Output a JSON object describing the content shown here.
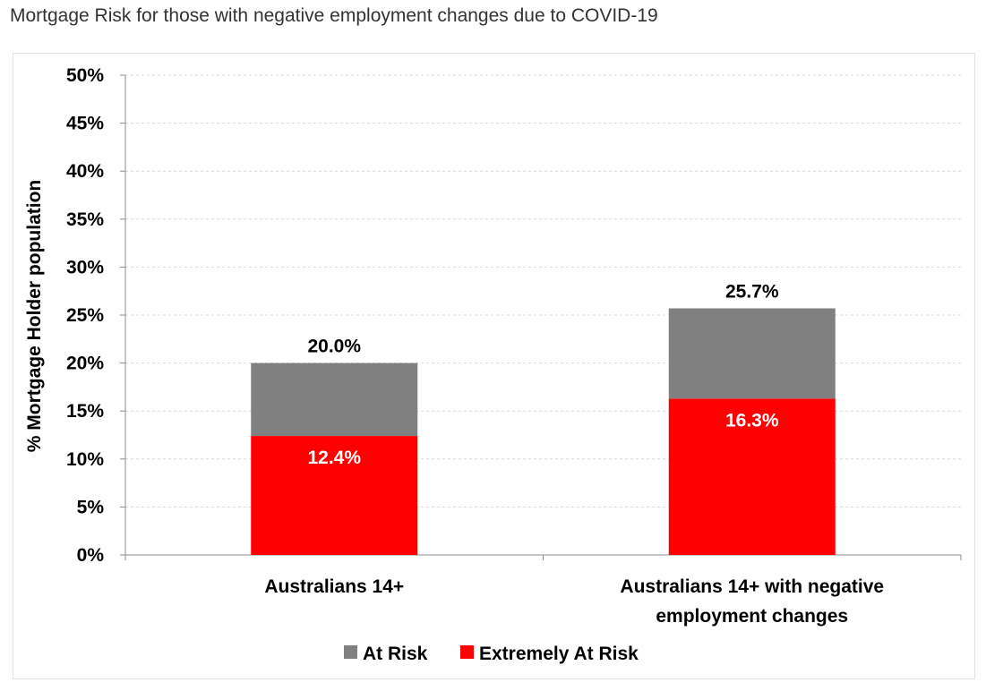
{
  "page": {
    "title": "Mortgage Risk for those with negative employment changes due to COVID-19"
  },
  "chart_data": {
    "type": "bar",
    "stacked": true,
    "title": "Mortgage Risk for those with negative employment changes due to COVID-19",
    "xlabel": "",
    "ylabel": "% Mortgage Holder population",
    "ylim": [
      0,
      50
    ],
    "yticks": [
      0,
      5,
      10,
      15,
      20,
      25,
      30,
      35,
      40,
      45,
      50
    ],
    "ytick_labels": [
      "0%",
      "5%",
      "10%",
      "15%",
      "20%",
      "25%",
      "30%",
      "35%",
      "40%",
      "45%",
      "50%"
    ],
    "grid": true,
    "legend_position": "bottom",
    "categories": [
      [
        "Australians 14+"
      ],
      [
        "Australians 14+ with negative",
        "employment changes"
      ]
    ],
    "series": [
      {
        "name": "Extremely At Risk",
        "color": "#ff0000",
        "values": [
          12.4,
          16.3
        ],
        "labels": [
          "12.4%",
          "16.3%"
        ],
        "label_color": "#ffffff"
      },
      {
        "name": "At Risk",
        "color": "#808080",
        "values": [
          7.6,
          9.4
        ]
      }
    ],
    "totals": [
      20.0,
      25.7
    ],
    "total_labels": [
      "20.0%",
      "25.7%"
    ],
    "legend": [
      {
        "name": "At Risk",
        "color": "#808080"
      },
      {
        "name": "Extremely At Risk",
        "color": "#ff0000"
      }
    ]
  }
}
